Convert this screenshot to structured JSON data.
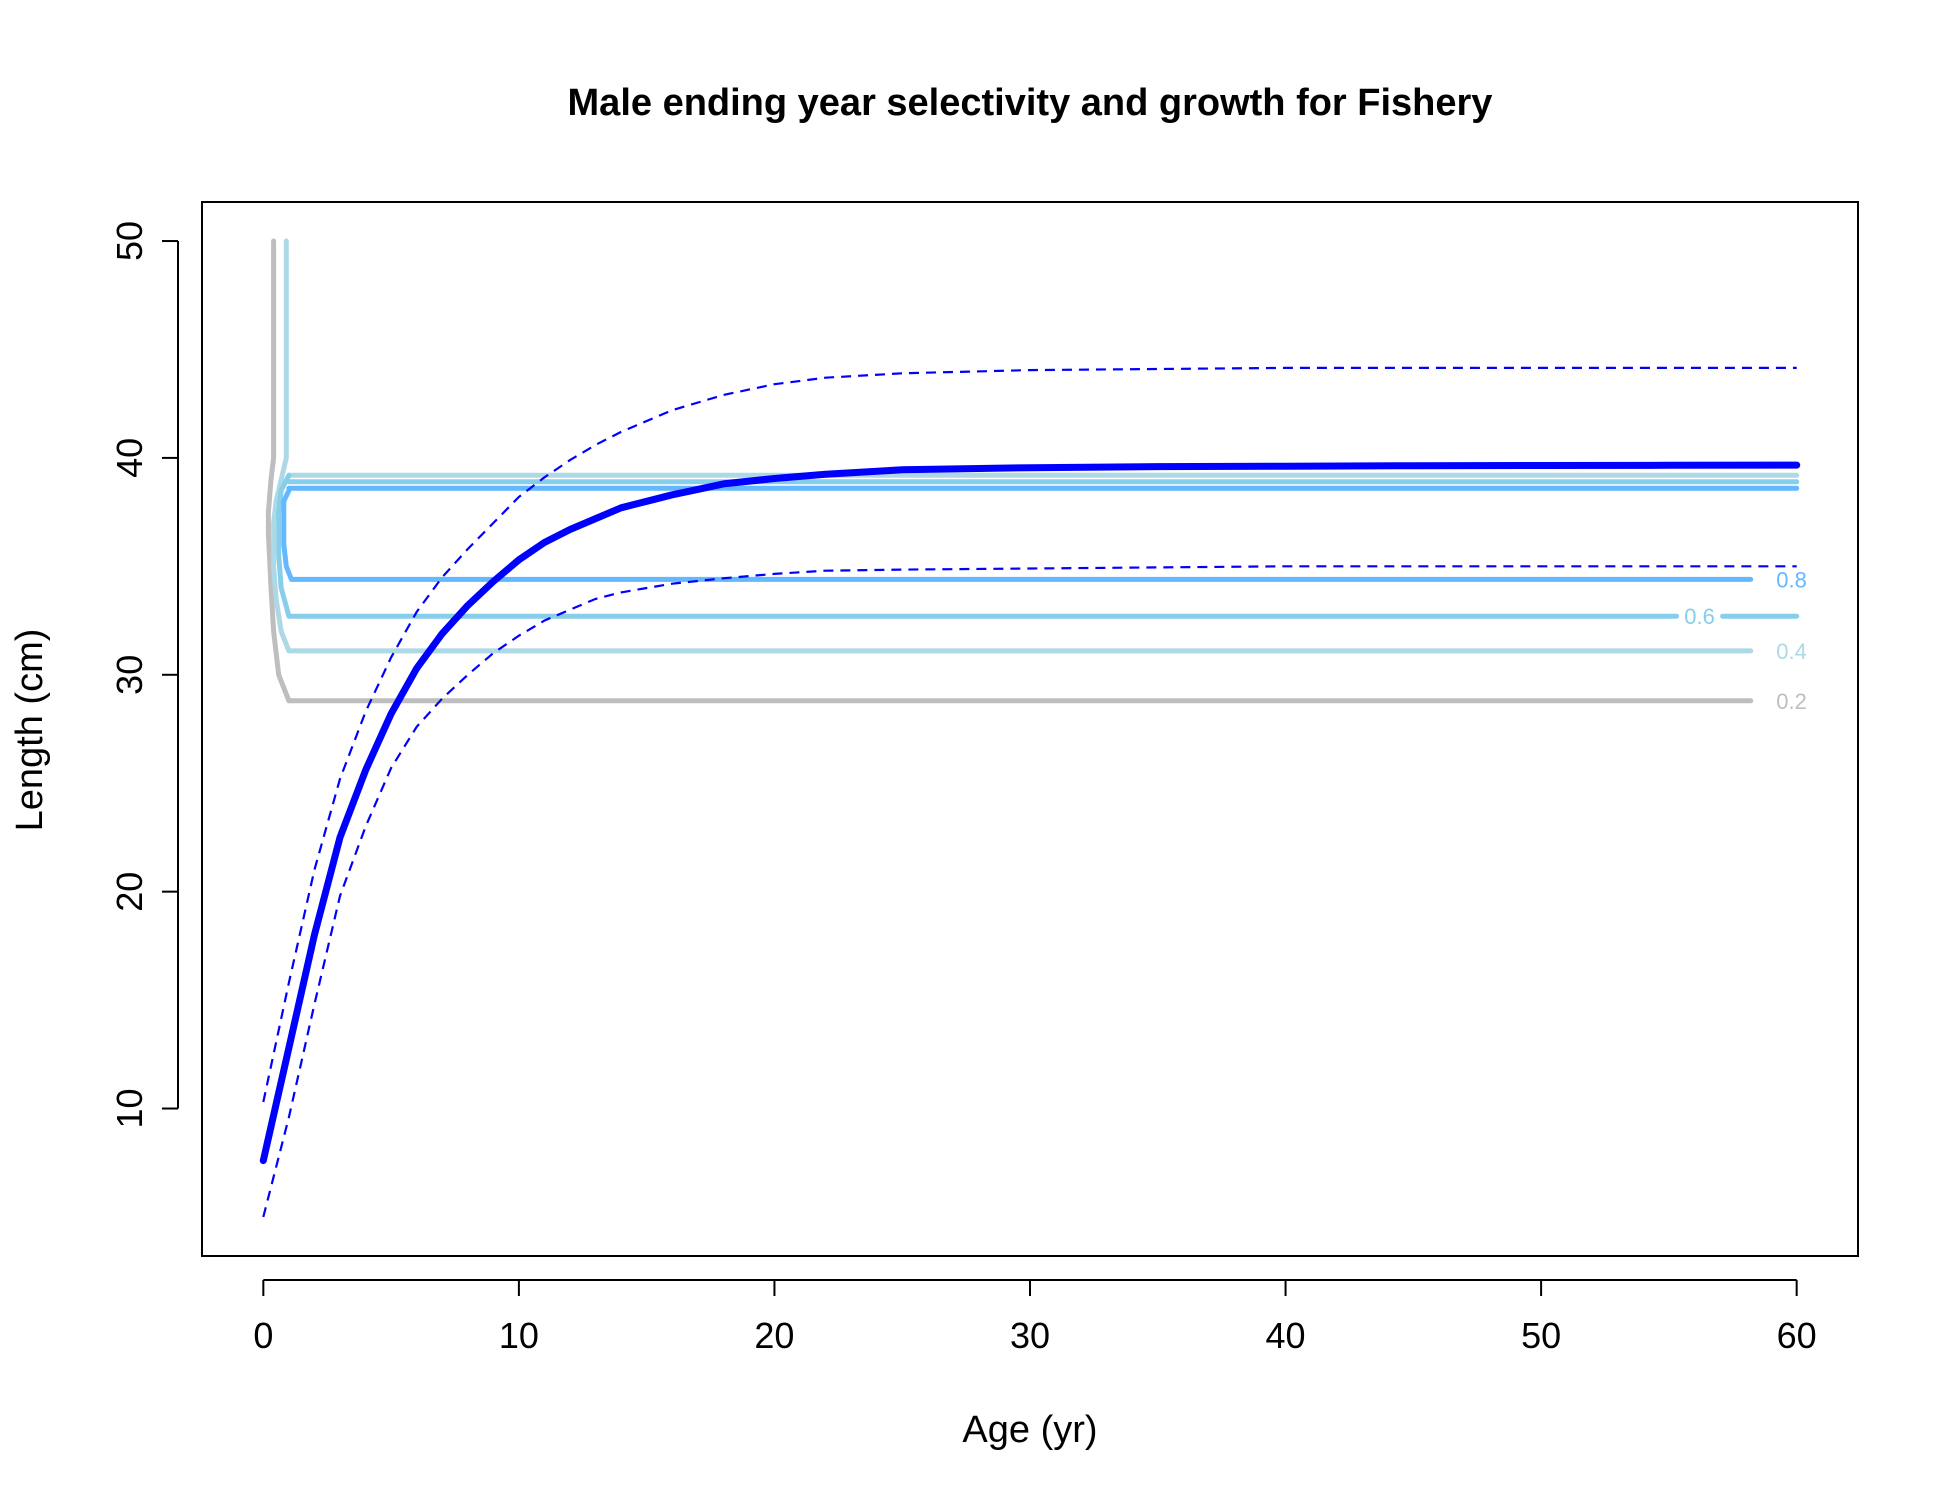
{
  "chart_data": {
    "type": "line",
    "title": "Male ending year selectivity and growth for Fishery",
    "xlabel": "Age (yr)",
    "ylabel": "Length (cm)",
    "xlim": [
      -2.4,
      62.4
    ],
    "ylim": [
      3.2,
      51.8
    ],
    "x_ticks": [
      0,
      10,
      20,
      30,
      40,
      50,
      60
    ],
    "y_ticks": [
      10,
      20,
      30,
      40,
      50
    ],
    "grid": false,
    "growth_curve": {
      "color": "#0000ff",
      "x": [
        0,
        1,
        2,
        3,
        4,
        5,
        6,
        7,
        8,
        9,
        10,
        11,
        12,
        13,
        14,
        15,
        16,
        17,
        18,
        20,
        22,
        25,
        30,
        35,
        40,
        45,
        50,
        55,
        60
      ],
      "y": [
        7.6,
        12.8,
        18.0,
        22.5,
        25.6,
        28.2,
        30.3,
        31.9,
        33.2,
        34.3,
        35.3,
        36.1,
        36.7,
        37.2,
        37.7,
        38.0,
        38.3,
        38.55,
        38.8,
        39.05,
        39.25,
        39.45,
        39.55,
        39.6,
        39.62,
        39.64,
        39.65,
        39.66,
        39.67
      ]
    },
    "growth_upper": {
      "color": "#0000ff",
      "style": "dashed",
      "x": [
        0,
        1,
        2,
        3,
        4,
        5,
        6,
        7,
        8,
        9,
        10,
        11,
        12,
        13,
        14,
        15,
        16,
        18,
        20,
        22,
        25,
        30,
        35,
        40,
        45,
        50,
        55,
        60
      ],
      "y": [
        10.3,
        15.8,
        21.0,
        25.2,
        28.3,
        30.8,
        32.9,
        34.5,
        35.8,
        37.0,
        38.2,
        39.1,
        39.9,
        40.6,
        41.2,
        41.7,
        42.2,
        42.9,
        43.4,
        43.7,
        43.9,
        44.05,
        44.1,
        44.15,
        44.15,
        44.15,
        44.15,
        44.15
      ]
    },
    "growth_lower": {
      "color": "#0000ff",
      "style": "dashed",
      "x": [
        0,
        1,
        2,
        3,
        4,
        5,
        6,
        7,
        8,
        9,
        10,
        11,
        12,
        13,
        14,
        15,
        16,
        18,
        20,
        22,
        25,
        30,
        35,
        40,
        45,
        50,
        55,
        60
      ],
      "y": [
        5.0,
        9.6,
        14.8,
        19.8,
        23.0,
        25.7,
        27.6,
        28.9,
        30.0,
        31.0,
        31.8,
        32.5,
        33.0,
        33.5,
        33.8,
        34.0,
        34.2,
        34.45,
        34.65,
        34.8,
        34.85,
        34.9,
        34.95,
        35.0,
        35.0,
        35.0,
        35.0,
        35.0
      ]
    },
    "selectivity_contours": [
      {
        "level": "0.2",
        "color": "#bebebe",
        "segments": [
          {
            "x": [
              0.4,
              0.4,
              0.3,
              0.2,
              0.2,
              0.3,
              0.4,
              0.6,
              1.0,
              58.2
            ],
            "y": [
              50,
              40,
              39.0,
              37.5,
              36.5,
              34.0,
              32.0,
              30.0,
              28.8,
              28.8
            ]
          }
        ],
        "label_at": [
          59.8,
          28.8
        ]
      },
      {
        "level": "0.4",
        "color": "#add8e6",
        "segments": [
          {
            "x": [
              0.9,
              0.9,
              0.7,
              0.5,
              0.4,
              0.4,
              0.5,
              0.7,
              1.0,
              58.2
            ],
            "y": [
              50,
              40,
              39.0,
              38.0,
              37.0,
              35.0,
              33.5,
              32.0,
              31.1,
              31.1
            ]
          },
          {
            "x": [
              1.0,
              60
            ],
            "y": [
              39.2,
              39.2
            ]
          }
        ],
        "label_at": [
          59.8,
          31.1
        ]
      },
      {
        "level": "0.6",
        "color": "#87ceeb",
        "segments": [
          {
            "x": [
              1.0,
              0.7,
              0.6,
              0.6,
              0.7,
              1.0,
              55.3
            ],
            "y": [
              39.2,
              38.5,
              37.5,
              35.5,
              34.0,
              32.7,
              32.7
            ]
          },
          {
            "x": [
              57.1,
              60
            ],
            "y": [
              32.7,
              32.7
            ]
          },
          {
            "x": [
              1.0,
              60
            ],
            "y": [
              38.9,
              38.9
            ]
          }
        ],
        "label_at": [
          56.2,
          32.7
        ]
      },
      {
        "level": "0.8",
        "color": "#63b8ff",
        "segments": [
          {
            "x": [
              1.0,
              0.8,
              0.8,
              0.8,
              0.9,
              1.1,
              58.2
            ],
            "y": [
              38.5,
              38.0,
              37.0,
              36.0,
              35.0,
              34.4,
              34.4
            ]
          },
          {
            "x": [
              1.0,
              60
            ],
            "y": [
              38.6,
              38.6
            ]
          }
        ],
        "label_at": [
          59.8,
          34.4
        ]
      }
    ]
  }
}
